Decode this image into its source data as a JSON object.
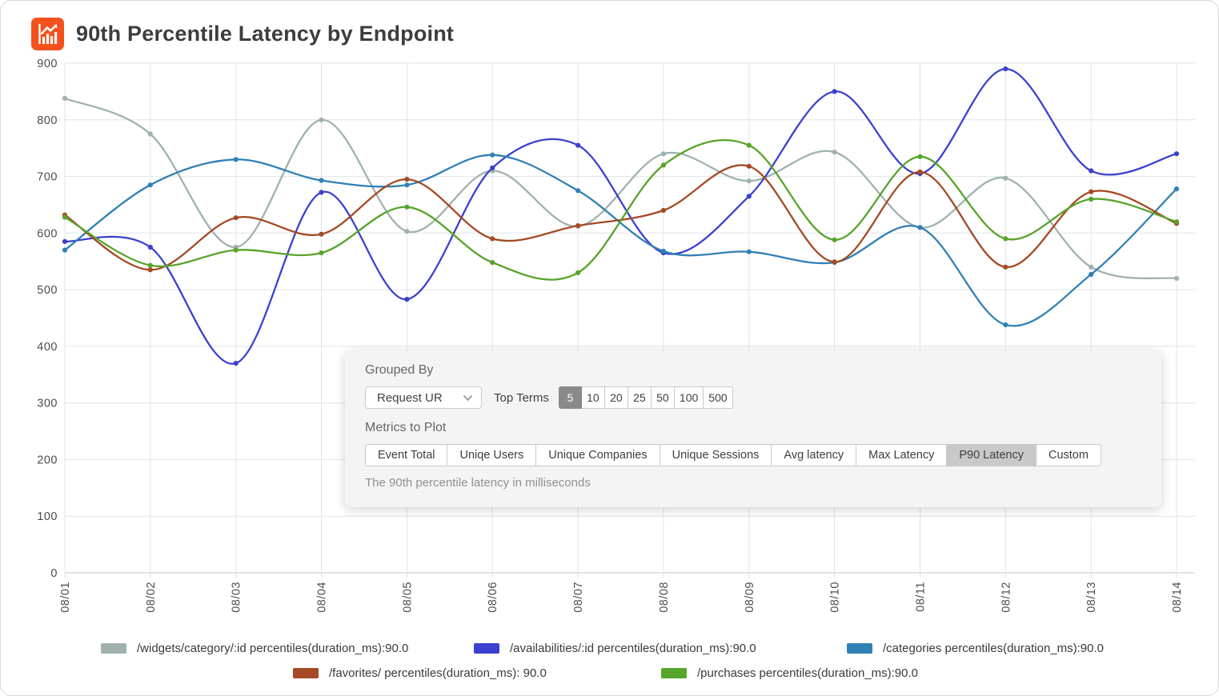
{
  "header": {
    "title": "90th Percentile Latency by Endpoint"
  },
  "panel": {
    "grouped_by_label": "Grouped By",
    "grouped_by_value": "Request UR",
    "top_terms_label": "Top Terms",
    "top_terms_options": [
      "5",
      "10",
      "20",
      "25",
      "50",
      "100",
      "500"
    ],
    "top_terms_selected": "5",
    "metrics_label": "Metrics to Plot",
    "metric_options": [
      "Event Total",
      "Uniqe Users",
      "Unique Companies",
      "Unique Sessions",
      "Avg latency",
      "Max Latency",
      "P90 Latency",
      "Custom"
    ],
    "metric_selected": "P90 Latency",
    "metric_description": "The 90th percentile latency in milliseconds"
  },
  "chart_data": {
    "type": "line",
    "title": "90th Percentile Latency by Endpoint",
    "x": [
      "08/01",
      "08/02",
      "08/03",
      "08/04",
      "08/05",
      "08/06",
      "08/07",
      "08/08",
      "08/09",
      "08/10",
      "08/11",
      "08/12",
      "08/13",
      "08/14"
    ],
    "ylim": [
      0,
      900
    ],
    "y_ticks": [
      0,
      100,
      200,
      300,
      400,
      500,
      600,
      700,
      800,
      900
    ],
    "grid": true,
    "curve": "smooth",
    "legend_position": "bottom",
    "series": [
      {
        "name": "/widgets/category/:id percentiles(duration_ms):90.0",
        "color": "#9FB2AF",
        "values": [
          838,
          775,
          575,
          800,
          603,
          710,
          612,
          740,
          692,
          743,
          610,
          697,
          540,
          520
        ]
      },
      {
        "name": "/availabilities/:id percentiles(duration_ms):90.0",
        "color": "#3B41CE",
        "values": [
          585,
          575,
          370,
          672,
          483,
          715,
          755,
          565,
          665,
          850,
          705,
          890,
          710,
          740
        ]
      },
      {
        "name": "/categories percentiles(duration_ms):90.0",
        "color": "#3080B5",
        "values": [
          570,
          685,
          730,
          693,
          685,
          738,
          675,
          568,
          567,
          548,
          610,
          438,
          527,
          678
        ]
      },
      {
        "name": "/favorites/ percentiles(duration_ms): 90.0",
        "color": "#A54A24",
        "values": [
          632,
          535,
          627,
          598,
          695,
          590,
          613,
          640,
          718,
          549,
          708,
          540,
          673,
          617
        ]
      },
      {
        "name": "/purchases percentiles(duration_ms):90.0",
        "color": "#57A42B",
        "values": [
          628,
          543,
          570,
          565,
          646,
          548,
          530,
          720,
          755,
          588,
          735,
          590,
          660,
          620
        ]
      }
    ]
  },
  "legend": {
    "row_split": [
      3,
      2
    ]
  },
  "colors": {
    "accent_orange": "#F4511E",
    "selected_dark": "#8A8A8A",
    "selected_light": "#C9C9C9",
    "panel_bg": "#F4F4F4",
    "grid_line": "#E2E4E7",
    "axis_line": "#C3C7CA"
  }
}
